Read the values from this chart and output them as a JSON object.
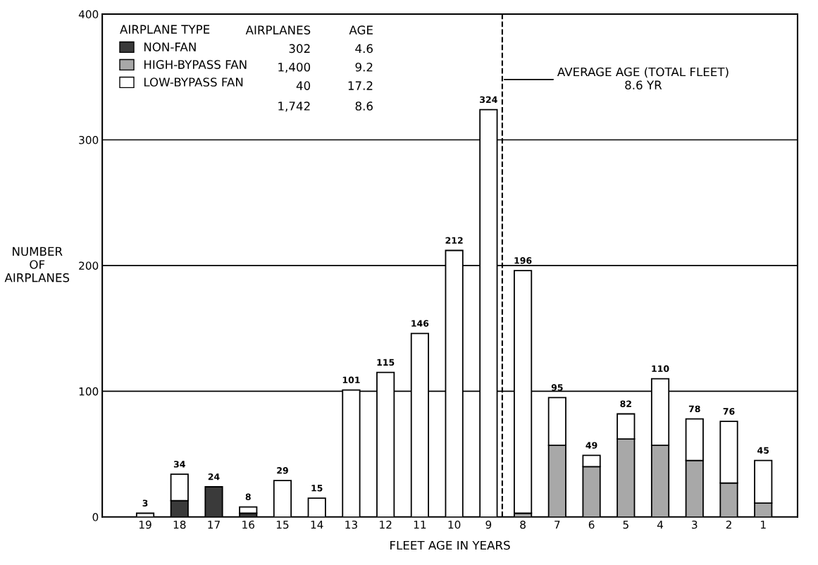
{
  "chart_data": {
    "type": "bar",
    "stacked": true,
    "xlabel": "FLEET AGE IN YEARS",
    "ylabel": "NUMBER\nOF\nAIRPLANES",
    "x": [
      19,
      18,
      17,
      16,
      15,
      14,
      13,
      12,
      11,
      10,
      9,
      8,
      7,
      6,
      5,
      4,
      3,
      2,
      1
    ],
    "xlim": [
      20.25,
      0
    ],
    "xticks": [
      19,
      18,
      17,
      16,
      15,
      14,
      13,
      12,
      11,
      10,
      9,
      8,
      7,
      6,
      5,
      4,
      3,
      2,
      1
    ],
    "ylim": [
      0,
      400
    ],
    "yticks": [
      0,
      100,
      200,
      300,
      400
    ],
    "series": [
      {
        "name": "NON-FAN",
        "color": "#3a3a3a",
        "values": [
          0,
          13,
          24,
          3,
          0,
          0,
          0,
          0,
          0,
          0,
          0,
          0,
          0,
          0,
          0,
          0,
          0,
          0,
          0
        ]
      },
      {
        "name": "HIGH-BYPASS FAN",
        "color": "#a8a8a8",
        "values": [
          0,
          0,
          0,
          0,
          0,
          0,
          0,
          0,
          0,
          0,
          0,
          3,
          57,
          40,
          62,
          57,
          45,
          27,
          11
        ]
      },
      {
        "name": "LOW-BYPASS FAN",
        "color": "#ffffff",
        "values": [
          3,
          21,
          0,
          5,
          29,
          15,
          101,
          115,
          146,
          212,
          324,
          193,
          38,
          9,
          20,
          53,
          33,
          49,
          34
        ]
      }
    ],
    "totals": [
      "3",
      "34",
      "24",
      "8",
      "29",
      "15",
      "101",
      "115",
      "146",
      "212",
      "324",
      "196",
      "95",
      "49",
      "82",
      "110",
      "78",
      "76",
      "45"
    ],
    "legend": "top left",
    "legend_title": "AIRPLANE TYPE",
    "annotations": [
      "AIRPLANES",
      "AGE",
      "302",
      "4.6",
      "1,400",
      "9.2",
      "40",
      "17.2",
      "1,742",
      "8.6"
    ],
    "ref_lines": [
      {
        "axis": "x",
        "value": 8.6,
        "label": "AVERAGE AGE (TOTAL FLEET)\n8.6 YR",
        "line_style": "dashed",
        "color": "#000000"
      }
    ],
    "grid": "y"
  }
}
